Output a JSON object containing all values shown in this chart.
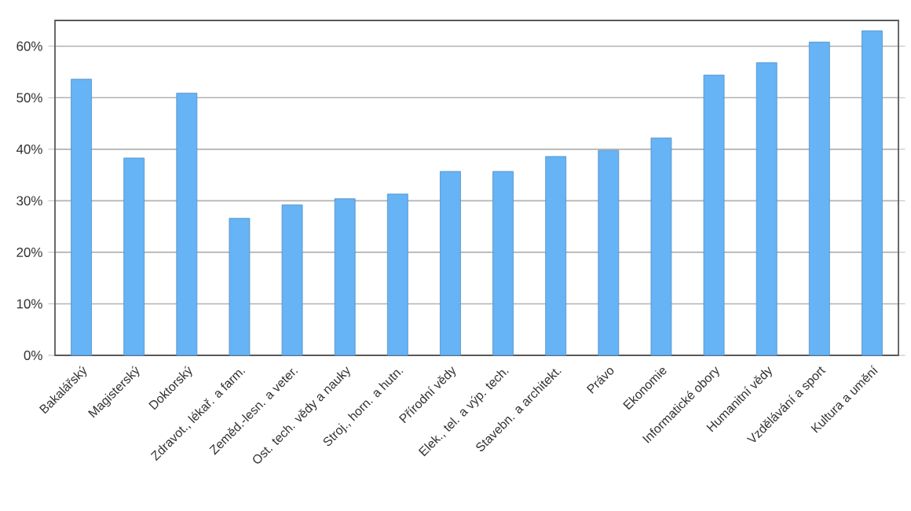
{
  "chart_data": {
    "type": "bar",
    "categories": [
      "Bakalářský",
      "Magisterský",
      "Doktorský",
      "Zdravot., lékař. a farm.",
      "Zeměd.-lesn. a veter.",
      "Ost. tech. vědy a nauky",
      "Stroj., horn. a hutn.",
      "Přírodní vědy",
      "Elek., tel. a výp. tech.",
      "Stavebn. a architekt.",
      "Právo",
      "Ekonomie",
      "Informatické obory",
      "Humanitní vědy",
      "Vzdělávání a sport",
      "Kultura a umění"
    ],
    "values": [
      53.6,
      38.3,
      50.9,
      26.6,
      29.2,
      30.4,
      31.3,
      35.7,
      35.7,
      38.6,
      39.8,
      42.2,
      54.4,
      56.8,
      60.8,
      63.0
    ],
    "color": "#66b3f5",
    "ylim": [
      0,
      65
    ],
    "yticks": [
      {
        "value": 0,
        "label": "0%"
      },
      {
        "value": 10,
        "label": "10%"
      },
      {
        "value": 20,
        "label": "20%"
      },
      {
        "value": 30,
        "label": "30%"
      },
      {
        "value": 40,
        "label": "40%"
      },
      {
        "value": 50,
        "label": "50%"
      },
      {
        "value": 60,
        "label": "60%"
      }
    ],
    "grid": "y"
  }
}
